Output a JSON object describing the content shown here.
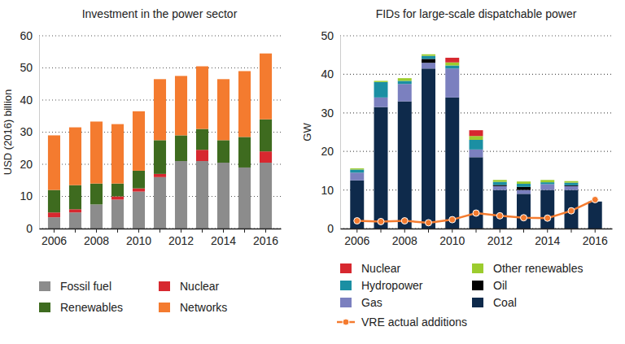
{
  "chart_data": [
    {
      "type": "bar",
      "title": "Investment in the power sector",
      "y_label": "USD (2016) billion",
      "stacked": true,
      "grid": true,
      "categories": [
        "2006",
        null,
        "2008",
        null,
        "2010",
        null,
        "2012",
        null,
        "2014",
        null,
        "2016"
      ],
      "ylim": [
        0,
        60
      ],
      "yticks": [
        0,
        10,
        20,
        30,
        40,
        50,
        60
      ],
      "series": [
        {
          "name": "Fossil fuel",
          "color": "#8c8c8c",
          "values": [
            3.5,
            5,
            7.5,
            9,
            11.5,
            16,
            21,
            21,
            20.5,
            19,
            20.5
          ]
        },
        {
          "name": "Nuclear",
          "color": "#d7282f",
          "values": [
            1.5,
            1,
            0,
            1,
            1,
            1,
            0,
            3.5,
            0,
            0,
            3.5
          ]
        },
        {
          "name": "Renewables",
          "color": "#3e6b1f",
          "values": [
            7,
            7.5,
            6.5,
            4,
            5.5,
            10.5,
            8,
            6.5,
            7,
            9.5,
            10
          ]
        },
        {
          "name": "Networks",
          "color": "#f47b2f",
          "values": [
            17,
            18,
            19.3,
            18.5,
            18.5,
            19,
            18.5,
            19.5,
            19,
            20.5,
            20.5
          ]
        }
      ]
    },
    {
      "type": "bar",
      "title": "FIDs for large-scale dispatchable power",
      "y_label": "GW",
      "stacked": true,
      "grid": true,
      "categories": [
        "2006",
        null,
        "2008",
        null,
        "2010",
        null,
        "2012",
        null,
        "2014",
        null,
        "2016"
      ],
      "ylim": [
        0,
        50
      ],
      "yticks": [
        0,
        10,
        20,
        30,
        40,
        50
      ],
      "series": [
        {
          "name": "Nuclear",
          "color": "#d7282f",
          "values": [
            0,
            0,
            0,
            0,
            1.2,
            1.5,
            0,
            0,
            0,
            0,
            0
          ]
        },
        {
          "name": "Other renewables",
          "color": "#9ccc2e",
          "values": [
            0.3,
            0.3,
            0.7,
            0.4,
            0.8,
            1,
            0.5,
            0.6,
            0.6,
            0.4,
            0
          ]
        },
        {
          "name": "Hydropower",
          "color": "#1b8fa3",
          "values": [
            0.8,
            4,
            0.8,
            0.8,
            0.8,
            2.5,
            0.8,
            0.8,
            0.5,
            0.7,
            0
          ]
        },
        {
          "name": "Oil",
          "color": "#000000",
          "values": [
            0,
            0,
            0,
            1,
            0,
            0,
            0.3,
            0.8,
            0,
            0.2,
            0
          ]
        },
        {
          "name": "Gas",
          "color": "#7b80bf",
          "values": [
            2,
            2.5,
            4.5,
            1.5,
            7.5,
            2,
            1,
            1,
            1.5,
            1,
            0
          ]
        },
        {
          "name": "Coal",
          "color": "#0e2a4b",
          "values": [
            12.5,
            31.5,
            33,
            41.5,
            34,
            18.5,
            10,
            9,
            10,
            10,
            7
          ]
        },
        {
          "name": "VRE actual additions",
          "color": "#f47b2f",
          "type": "line",
          "marker": "circle",
          "values": [
            2,
            1.8,
            2,
            1.5,
            2.3,
            4,
            3.3,
            2.8,
            2.7,
            4.6,
            7.5
          ]
        }
      ]
    }
  ]
}
